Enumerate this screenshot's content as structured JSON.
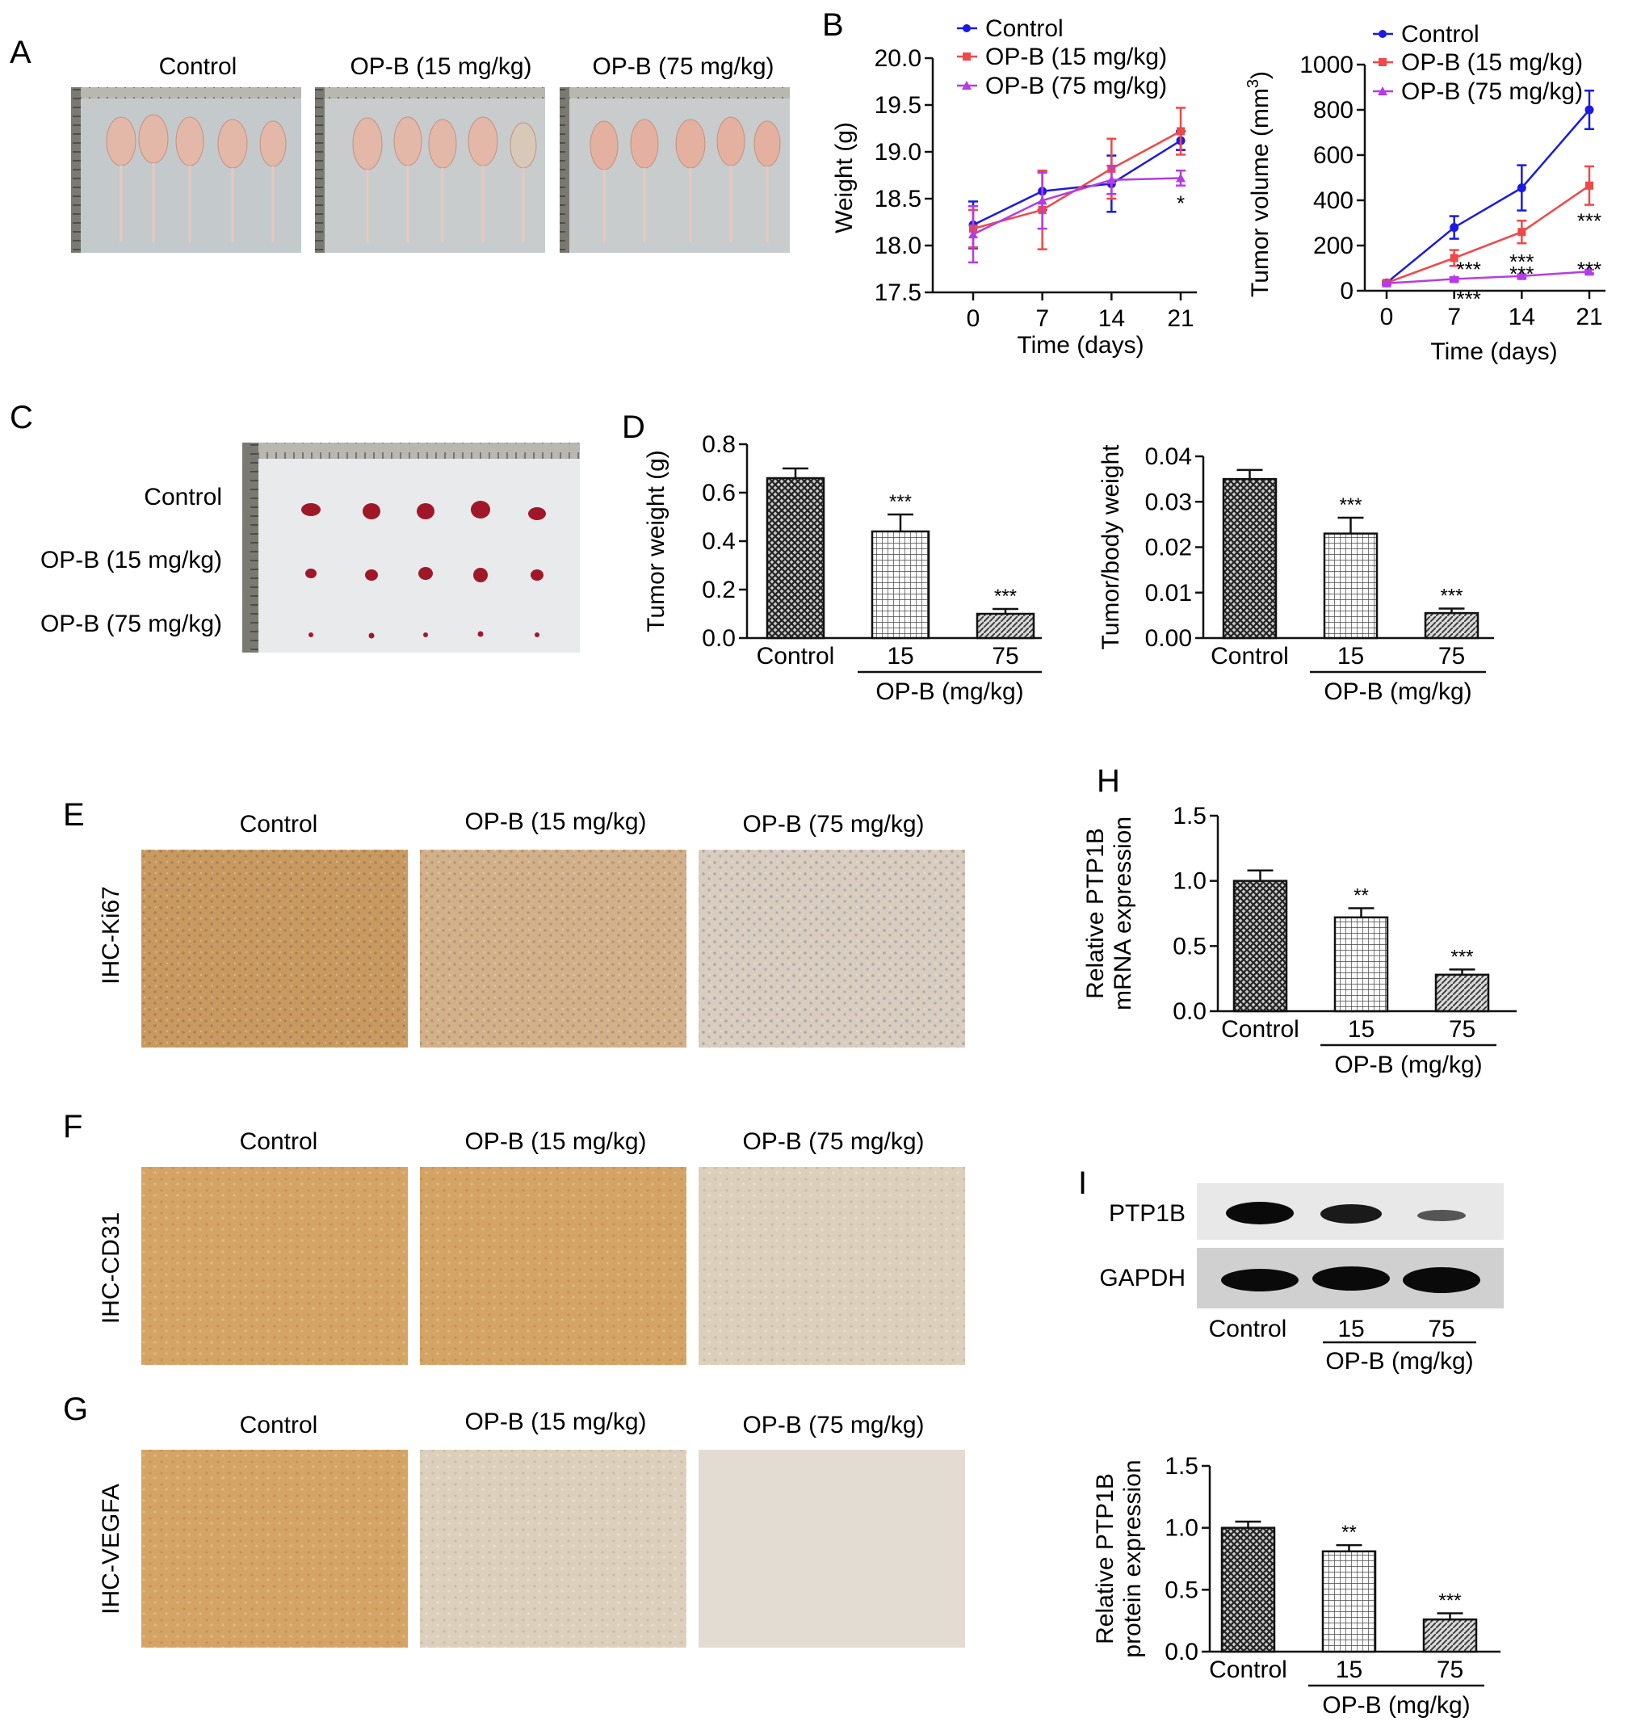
{
  "panel_letters": {
    "A": "A",
    "B": "B",
    "C": "C",
    "D": "D",
    "E": "E",
    "F": "F",
    "G": "G",
    "H": "H",
    "I": "I"
  },
  "groups": [
    "Control",
    "OP-B (15 mg/kg)",
    "OP-B (75 mg/kg)"
  ],
  "groups_short": [
    "Control",
    "15",
    "75"
  ],
  "opb_label": "OP-B (mg/kg)",
  "ihc_rows": {
    "ki67": "IHC-Ki67",
    "cd31": "IHC-CD31",
    "vegfa": "IHC-VEGFA"
  },
  "western": {
    "band1": "PTP1B",
    "band2": "GAPDH"
  },
  "colors": {
    "control": "#1a1ae6",
    "opb15": "#f04848",
    "opb75": "#b43ce6",
    "tissue_dark": "#c89a62",
    "tissue_light": "#d8c8b0",
    "tumor": "#a01828"
  },
  "chart_data": [
    {
      "id": "weight",
      "type": "line",
      "title": "",
      "xlabel": "Time (days)",
      "ylabel": "Weight (g)",
      "x": [
        0,
        7,
        14,
        21
      ],
      "xticks": [
        "0",
        "7",
        "14",
        "21"
      ],
      "ylim": [
        17.5,
        20.0
      ],
      "yticks": [
        "17.5",
        "18.0",
        "18.5",
        "19.0",
        "19.5",
        "20.0"
      ],
      "legend": "top-left",
      "series": [
        {
          "name": "Control",
          "values": [
            18.22,
            18.58,
            18.66,
            19.12
          ],
          "err": [
            0.25,
            0.2,
            0.3,
            0.1
          ]
        },
        {
          "name": "OP-B (15 mg/kg)",
          "values": [
            18.18,
            18.38,
            18.82,
            19.22
          ],
          "err": [
            0.2,
            0.42,
            0.32,
            0.25
          ]
        },
        {
          "name": "OP-B (75 mg/kg)",
          "values": [
            18.12,
            18.48,
            18.7,
            18.72
          ],
          "err": [
            0.3,
            0.3,
            0.15,
            0.08
          ]
        }
      ],
      "annotations": [
        {
          "text": "*",
          "x": 21,
          "y": 18.48
        }
      ]
    },
    {
      "id": "volume",
      "type": "line",
      "title": "",
      "xlabel": "Time (days)",
      "ylabel_main": "Tumor volume (mm",
      "ylabel_sup": "3",
      "ylabel_close": ")",
      "x": [
        0,
        7,
        14,
        21
      ],
      "xticks": [
        "0",
        "7",
        "14",
        "21"
      ],
      "ylim": [
        0,
        1000
      ],
      "yticks": [
        "0",
        "200",
        "400",
        "600",
        "800",
        "1000"
      ],
      "legend": "top-left",
      "series": [
        {
          "name": "Control",
          "values": [
            35,
            280,
            455,
            800
          ],
          "err": [
            8,
            50,
            100,
            85
          ]
        },
        {
          "name": "OP-B (15 mg/kg)",
          "values": [
            35,
            145,
            260,
            465
          ],
          "err": [
            8,
            35,
            50,
            85
          ]
        },
        {
          "name": "OP-B (75 mg/kg)",
          "values": [
            33,
            52,
            65,
            85
          ],
          "err": [
            6,
            8,
            8,
            8
          ]
        }
      ],
      "annotations": [
        {
          "text": "***",
          "x": 21,
          "y": 320
        },
        {
          "text": "***",
          "x": 7,
          "y": 105
        },
        {
          "text": "***",
          "x": 7,
          "y": -25
        },
        {
          "text": "***",
          "x": 14,
          "y": 140
        },
        {
          "text": "***",
          "x": 14,
          "y": 85
        },
        {
          "text": "***",
          "x": 21,
          "y": 105
        }
      ]
    },
    {
      "id": "tumor_weight",
      "type": "bar",
      "ylabel": "Tumor weight (g)",
      "categories": [
        "Control",
        "15",
        "75"
      ],
      "values": [
        0.66,
        0.44,
        0.1
      ],
      "err": [
        0.04,
        0.07,
        0.02
      ],
      "sig": [
        "",
        "***",
        "***"
      ],
      "ylim": [
        0,
        0.8
      ],
      "yticks": [
        "0.0",
        "0.2",
        "0.4",
        "0.6",
        "0.8"
      ],
      "group_label": "OP-B (mg/kg)"
    },
    {
      "id": "tumor_body",
      "type": "bar",
      "ylabel": "Tumor/body weight",
      "categories": [
        "Control",
        "15",
        "75"
      ],
      "values": [
        0.035,
        0.023,
        0.0055
      ],
      "err": [
        0.002,
        0.0035,
        0.001
      ],
      "sig": [
        "",
        "***",
        "***"
      ],
      "ylim": [
        0,
        0.04
      ],
      "yticks": [
        "0.00",
        "0.01",
        "0.02",
        "0.03",
        "0.04"
      ],
      "group_label": "OP-B (mg/kg)"
    },
    {
      "id": "mrna",
      "type": "bar",
      "ylabel": [
        "Relative PTP1B",
        "mRNA expression"
      ],
      "categories": [
        "Control",
        "15",
        "75"
      ],
      "values": [
        1.0,
        0.72,
        0.28
      ],
      "err": [
        0.08,
        0.07,
        0.04
      ],
      "sig": [
        "",
        "**",
        "***"
      ],
      "ylim": [
        0,
        1.5
      ],
      "yticks": [
        "0.0",
        "0.5",
        "1.0",
        "1.5"
      ],
      "group_label": "OP-B (mg/kg)"
    },
    {
      "id": "protein",
      "type": "bar",
      "ylabel": [
        "Relative PTP1B",
        "protein expression"
      ],
      "categories": [
        "Control",
        "15",
        "75"
      ],
      "values": [
        1.0,
        0.81,
        0.26
      ],
      "err": [
        0.05,
        0.05,
        0.05
      ],
      "sig": [
        "",
        "**",
        "***"
      ],
      "ylim": [
        0,
        1.5
      ],
      "yticks": [
        "0.0",
        "0.5",
        "1.0",
        "1.5"
      ],
      "group_label": "OP-B (mg/kg)"
    }
  ]
}
